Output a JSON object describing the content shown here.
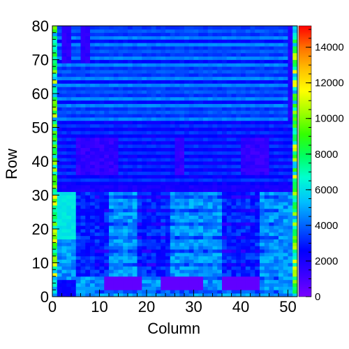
{
  "chart_data": {
    "type": "heatmap",
    "xlabel": "Column",
    "ylabel": "Row",
    "xlim": [
      0,
      52
    ],
    "ylim": [
      0,
      80
    ],
    "x_ticks": [
      "0",
      "10",
      "20",
      "30",
      "40",
      "50"
    ],
    "y_ticks": [
      "0",
      "10",
      "20",
      "30",
      "40",
      "50",
      "60",
      "70",
      "80"
    ],
    "z_range": [
      0,
      15200
    ],
    "colorbar_ticks": [
      "0",
      "2000",
      "4000",
      "6000",
      "8000",
      "10000",
      "12000",
      "14000"
    ],
    "colorscale": [
      "#7a00ff",
      "#3b00ff",
      "#0000ff",
      "#0060ff",
      "#00bfff",
      "#00ffd0",
      "#00ff60",
      "#33ff00",
      "#a0ff00",
      "#ffff00",
      "#ffc000",
      "#ff7000",
      "#ff0000"
    ],
    "grid_size": {
      "columns": 52,
      "rows": 80
    },
    "approximate_regions": [
      {
        "name": "upper-background",
        "col_range": [
          0,
          52
        ],
        "row_range": [
          52,
          80
        ],
        "value": 3200
      },
      {
        "name": "upper-stripe-light",
        "pattern": "alternating rows",
        "value": 4300
      },
      {
        "name": "left-dark-strips",
        "col_ranges": [
          [
            2,
            4
          ],
          [
            6,
            8
          ]
        ],
        "row_range": [
          69,
          80
        ],
        "value": 1600
      },
      {
        "name": "right-dark-strip",
        "col_range": [
          50,
          51
        ],
        "row_range": [
          52,
          80
        ],
        "value": 1800
      },
      {
        "name": "middle-band",
        "col_range": [
          0,
          52
        ],
        "row_range": [
          31,
          52
        ],
        "value": 2300
      },
      {
        "name": "middle-dark-blocks",
        "col_ranges": [
          [
            5,
            14
          ],
          [
            26,
            28
          ],
          [
            40,
            46
          ]
        ],
        "row_range": [
          36,
          47
        ],
        "value": 1300
      },
      {
        "name": "lower-field",
        "col_range": [
          0,
          52
        ],
        "row_range": [
          0,
          31
        ],
        "value": 4500
      },
      {
        "name": "lower-bright-left",
        "col_range": [
          0,
          5
        ],
        "row_range": [
          17,
          31
        ],
        "value": 5800
      },
      {
        "name": "lower-column-bands",
        "col_ranges": [
          [
            5,
            12
          ],
          [
            18,
            25
          ],
          [
            36,
            44
          ]
        ],
        "row_range": [
          0,
          31
        ],
        "value": 3000
      },
      {
        "name": "bottom-purple-blocks",
        "col_ranges": [
          [
            11,
            19
          ],
          [
            23,
            32
          ],
          [
            36,
            44
          ]
        ],
        "row_range": [
          2,
          6
        ],
        "value": 500
      },
      {
        "name": "edge-bright-cells",
        "col_ranges": [
          [
            0,
            1
          ],
          [
            51,
            52
          ]
        ],
        "row_range": [
          0,
          80
        ],
        "value": 9000
      }
    ]
  }
}
